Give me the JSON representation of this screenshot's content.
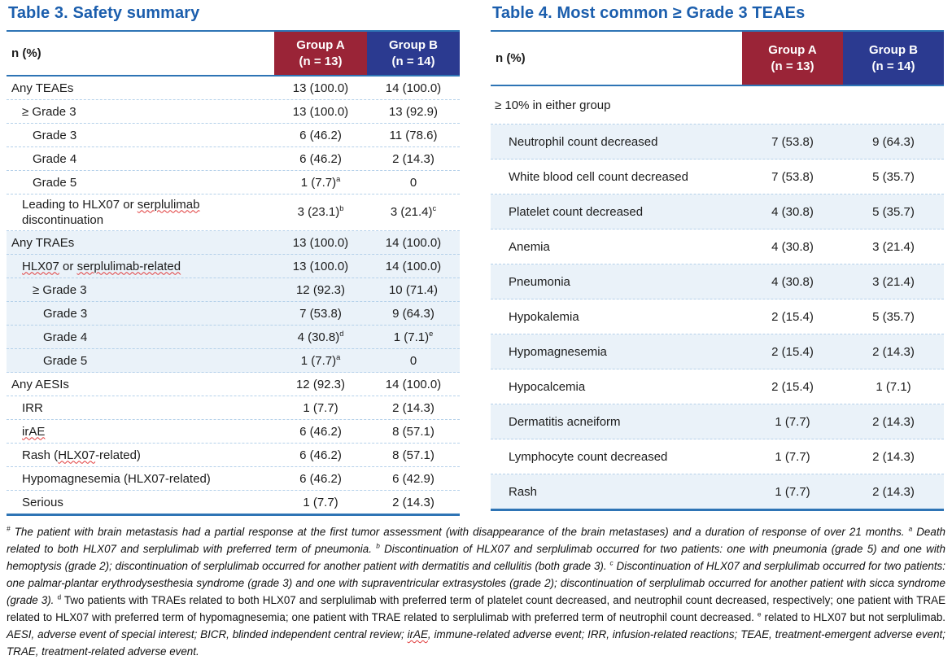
{
  "colors": {
    "title_blue": "#1b5ead",
    "group_a_red": "#9a2437",
    "group_b_navy": "#2b3a90",
    "row_tint": "#eaf2f9",
    "table_border_blue": "#2e74b5",
    "row_separator": "#b5d1ea",
    "spellcheck_red": "#e03a3a"
  },
  "table3": {
    "title": "Table 3. Safety summary",
    "header": {
      "label": "n (%)",
      "group_a": {
        "name": "Group A",
        "n": "(n = 13)"
      },
      "group_b": {
        "name": "Group B",
        "n": "(n = 14)"
      }
    },
    "rows": [
      {
        "i": 0,
        "label": [
          {
            "t": "Any TEAEs"
          }
        ],
        "a": {
          "t": "13 (100.0)"
        },
        "b": {
          "t": "14 (100.0)"
        }
      },
      {
        "i": 1,
        "label": [
          {
            "t": "≥ Grade 3"
          }
        ],
        "a": {
          "t": "13 (100.0)"
        },
        "b": {
          "t": "13 (92.9)"
        }
      },
      {
        "i": 2,
        "label": [
          {
            "t": "Grade 3"
          }
        ],
        "a": {
          "t": "6 (46.2)"
        },
        "b": {
          "t": "11 (78.6)"
        }
      },
      {
        "i": 2,
        "label": [
          {
            "t": "Grade 4"
          }
        ],
        "a": {
          "t": "6 (46.2)"
        },
        "b": {
          "t": "2 (14.3)"
        }
      },
      {
        "i": 2,
        "label": [
          {
            "t": "Grade 5"
          }
        ],
        "a": {
          "t": "1 (7.7)",
          "sup": "a"
        },
        "b": {
          "t": "0"
        }
      },
      {
        "i": 1,
        "tall": true,
        "label": [
          {
            "t": "Leading to HLX07 or "
          },
          {
            "t": "serplulimab",
            "sq": true
          },
          {
            "br": true
          },
          {
            "t": "discontinuation"
          }
        ],
        "a": {
          "t": "3 (23.1)",
          "sup": "b"
        },
        "b": {
          "t": "3 (21.4)",
          "sup": "c"
        }
      },
      {
        "i": 0,
        "tint": true,
        "label": [
          {
            "t": "Any TRAEs"
          }
        ],
        "a": {
          "t": "13 (100.0)"
        },
        "b": {
          "t": "14 (100.0)"
        }
      },
      {
        "i": 1,
        "tint": true,
        "label": [
          {
            "t": "HLX07",
            "sq": true
          },
          {
            "t": " or "
          },
          {
            "t": "serplulimab-related",
            "sq": true
          }
        ],
        "a": {
          "t": "13 (100.0)"
        },
        "b": {
          "t": "14 (100.0)"
        }
      },
      {
        "i": 2,
        "tint": true,
        "label": [
          {
            "t": "≥ Grade 3"
          }
        ],
        "a": {
          "t": "12 (92.3)"
        },
        "b": {
          "t": "10 (71.4)"
        }
      },
      {
        "i": 3,
        "tint": true,
        "label": [
          {
            "t": "Grade 3"
          }
        ],
        "a": {
          "t": "7 (53.8)"
        },
        "b": {
          "t": "9 (64.3)"
        }
      },
      {
        "i": 3,
        "tint": true,
        "label": [
          {
            "t": "Grade 4"
          }
        ],
        "a": {
          "t": "4 (30.8)",
          "sup": "d"
        },
        "b": {
          "t": "1 (7.1)",
          "sup": "e"
        }
      },
      {
        "i": 3,
        "tint": true,
        "label": [
          {
            "t": "Grade 5"
          }
        ],
        "a": {
          "t": "1 (7.7)",
          "sup": "a"
        },
        "b": {
          "t": "0"
        }
      },
      {
        "i": 0,
        "label": [
          {
            "t": "Any AESIs"
          }
        ],
        "a": {
          "t": "12 (92.3)"
        },
        "b": {
          "t": "14 (100.0)"
        }
      },
      {
        "i": 1,
        "label": [
          {
            "t": "IRR"
          }
        ],
        "a": {
          "t": "1 (7.7)"
        },
        "b": {
          "t": "2 (14.3)"
        }
      },
      {
        "i": 1,
        "label": [
          {
            "t": "irAE",
            "sq": true
          }
        ],
        "a": {
          "t": "6 (46.2)"
        },
        "b": {
          "t": "8 (57.1)"
        }
      },
      {
        "i": 1,
        "label": [
          {
            "t": "Rash ("
          },
          {
            "t": "HLX07",
            "sq": true
          },
          {
            "t": "-related)"
          }
        ],
        "a": {
          "t": "6 (46.2)"
        },
        "b": {
          "t": "8 (57.1)"
        }
      },
      {
        "i": 1,
        "label": [
          {
            "t": "Hypomagnesemia (HLX07-related)"
          }
        ],
        "a": {
          "t": "6 (46.2)"
        },
        "b": {
          "t": "6 (42.9)"
        }
      },
      {
        "i": 1,
        "label": [
          {
            "t": "Serious"
          }
        ],
        "a": {
          "t": "1 (7.7)"
        },
        "b": {
          "t": "2 (14.3)"
        }
      }
    ]
  },
  "table4": {
    "title": "Table 4. Most common ≥ Grade 3 TEAEs",
    "header": {
      "label": "n (%)",
      "group_a": {
        "name": "Group A",
        "n": "(n = 13)"
      },
      "group_b": {
        "name": "Group B",
        "n": "(n = 14)"
      }
    },
    "subheader": "≥ 10% in either group",
    "rows": [
      {
        "tint": true,
        "label": [
          {
            "t": "Neutrophil count decreased"
          }
        ],
        "a": {
          "t": "7 (53.8)"
        },
        "b": {
          "t": "9 (64.3)"
        }
      },
      {
        "label": [
          {
            "t": "White blood cell count decreased"
          }
        ],
        "a": {
          "t": "7 (53.8)"
        },
        "b": {
          "t": "5 (35.7)"
        }
      },
      {
        "tint": true,
        "label": [
          {
            "t": "Platelet count decreased"
          }
        ],
        "a": {
          "t": "4 (30.8)"
        },
        "b": {
          "t": "5 (35.7)"
        }
      },
      {
        "label": [
          {
            "t": "Anemia"
          }
        ],
        "a": {
          "t": "4 (30.8)"
        },
        "b": {
          "t": "3 (21.4)"
        }
      },
      {
        "tint": true,
        "label": [
          {
            "t": "Pneumonia"
          }
        ],
        "a": {
          "t": "4 (30.8)"
        },
        "b": {
          "t": "3 (21.4)"
        }
      },
      {
        "label": [
          {
            "t": "Hypokalemia"
          }
        ],
        "a": {
          "t": "2 (15.4)"
        },
        "b": {
          "t": "5 (35.7)"
        }
      },
      {
        "tint": true,
        "label": [
          {
            "t": "Hypomagnesemia"
          }
        ],
        "a": {
          "t": "2 (15.4)"
        },
        "b": {
          "t": "2 (14.3)"
        }
      },
      {
        "label": [
          {
            "t": "Hypocalcemia"
          }
        ],
        "a": {
          "t": "2 (15.4)"
        },
        "b": {
          "t": "1 (7.1)"
        }
      },
      {
        "tint": true,
        "label": [
          {
            "t": "Dermatitis acneiform"
          }
        ],
        "a": {
          "t": "1 (7.7)"
        },
        "b": {
          "t": "2 (14.3)"
        }
      },
      {
        "label": [
          {
            "t": "Lymphocyte count decreased"
          }
        ],
        "a": {
          "t": "1 (7.7)"
        },
        "b": {
          "t": "2 (14.3)"
        }
      },
      {
        "tint": true,
        "label": [
          {
            "t": "Rash"
          }
        ],
        "a": {
          "t": "1 (7.7)"
        },
        "b": {
          "t": "2 (14.3)"
        }
      }
    ]
  },
  "footnote": {
    "segments": [
      {
        "sup": "#",
        "style": "italic",
        "parts": [
          {
            "t": "The patient with brain metastasis had a partial response at the first tumor assessment (with disappearance of the brain metastases) and a duration of response of over 21 months."
          }
        ]
      },
      {
        "sup": "a",
        "style": "italic",
        "parts": [
          {
            "t": "Death related to both HLX07 and serplulimab with preferred term of pneumonia."
          }
        ]
      },
      {
        "sup": "b",
        "style": "italic",
        "parts": [
          {
            "t": "Discontinuation of HLX07 and serplulimab occurred for two patients: one with pneumonia (grade 5) and one with hemoptysis (grade 2); discontinuation of serplulimab occurred for another patient with dermatitis and cellulitis (both grade 3)."
          }
        ]
      },
      {
        "sup": "c",
        "style": "italic",
        "parts": [
          {
            "t": "Discontinuation of HLX07 and serplulimab occurred for two patients: one palmar-plantar erythrodysesthesia syndrome (grade 3) and one with supraventricular extrasystoles (grade 2); discontinuation of serplulimab occurred for another patient with sicca syndrome (grade 3)."
          }
        ]
      },
      {
        "sup": "d",
        "style": "roman",
        "parts": [
          {
            "t": "Two patients with TRAEs related to both HLX07 and serplulimab with preferred term of platelet count decreased, and neutrophil count decreased, respectively; one patient with TRAE related to HLX07 with preferred term of hypomagnesemia; one patient with TRAE related to serplulimab with preferred term of neutrophil count decreased."
          }
        ]
      },
      {
        "sup": "e",
        "style": "roman",
        "parts": [
          {
            "t": "related to HLX07 but not serplulimab."
          }
        ]
      },
      {
        "style": "italic",
        "parts": [
          {
            "t": "AESI, adverse event of special interest; BICR, blinded independent central review; "
          },
          {
            "t": "irAE",
            "sq": true
          },
          {
            "t": ", immune-related adverse event; IRR, infusion-related reactions; TEAE, treatment-emergent adverse event; TRAE, treatment-related adverse event."
          }
        ]
      }
    ]
  }
}
